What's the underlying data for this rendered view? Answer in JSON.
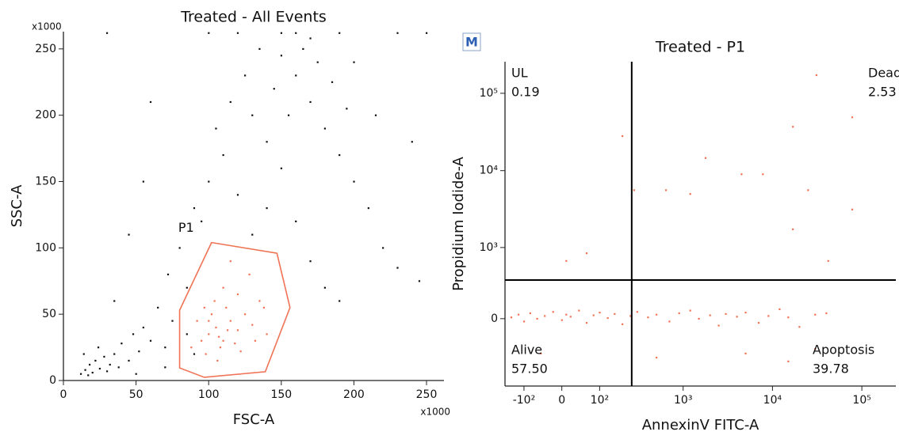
{
  "chart_data": [
    {
      "type": "scatter",
      "title": "Treated - All Events",
      "x_label": "FSC-A",
      "y_label": "SSC-A",
      "x_unit_label": "x1000",
      "y_unit_label": "x1000",
      "xlim": [
        0,
        262
      ],
      "ylim": [
        0,
        263
      ],
      "xticks": [
        0,
        50,
        100,
        150,
        200,
        250
      ],
      "yticks": [
        0,
        50,
        100,
        150,
        200,
        250
      ],
      "series": [
        {
          "color": "#111111",
          "x": [
            12,
            15,
            18,
            20,
            22,
            25,
            28,
            30,
            14,
            17,
            24,
            32,
            35,
            38,
            40,
            45,
            48,
            52,
            55,
            60,
            65,
            70,
            72,
            75,
            80,
            85,
            90,
            95,
            100,
            105,
            110,
            115,
            120,
            125,
            130,
            135,
            140,
            145,
            150,
            155,
            160,
            165,
            170,
            175,
            180,
            185,
            190,
            195,
            200,
            210,
            220,
            230,
            245,
            160,
            170,
            180,
            190,
            150,
            140,
            130,
            60,
            45,
            35,
            55,
            200,
            215,
            240,
            170,
            160,
            150,
            100,
            30,
            230,
            250,
            120,
            190,
            85,
            90,
            70,
            50
          ],
          "values": [
            5,
            8,
            12,
            6,
            15,
            9,
            18,
            7,
            20,
            4,
            25,
            12,
            20,
            10,
            28,
            15,
            35,
            22,
            40,
            30,
            55,
            25,
            80,
            45,
            100,
            70,
            130,
            120,
            150,
            190,
            170,
            210,
            140,
            230,
            200,
            250,
            180,
            220,
            245,
            200,
            230,
            250,
            210,
            240,
            190,
            225,
            170,
            205,
            150,
            130,
            100,
            85,
            75,
            120,
            90,
            70,
            60,
            160,
            130,
            110,
            210,
            110,
            60,
            150,
            240,
            200,
            180,
            258,
            262,
            262,
            262,
            262,
            262,
            262,
            262,
            262,
            35,
            20,
            10,
            5
          ]
        },
        {
          "color": "#f07356",
          "x": [
            95,
            100,
            105,
            110,
            115,
            120,
            108,
            102,
            98,
            112,
            118,
            125,
            130,
            135,
            92,
            88,
            104,
            110,
            120,
            128,
            115,
            106,
            140,
            138,
            97,
            122,
            132,
            100,
            107,
            113
          ],
          "values": [
            30,
            35,
            40,
            30,
            45,
            38,
            25,
            50,
            20,
            55,
            28,
            50,
            42,
            60,
            45,
            25,
            60,
            70,
            65,
            80,
            90,
            15,
            35,
            55,
            55,
            22,
            30,
            45,
            33,
            38
          ]
        }
      ],
      "gates": [
        {
          "label": "P1",
          "color": "#f07356",
          "x": [
            102,
            147,
            156,
            139,
            97,
            80,
            80
          ],
          "y": [
            104,
            96,
            55,
            6.6,
            2.4,
            9.5,
            53
          ]
        }
      ]
    },
    {
      "type": "scatter",
      "title": "Treated - P1",
      "badge": "M",
      "x_label": "AnnexinV FITC-A",
      "y_label": "Propidium Iodide-A",
      "xscale": "biexponential",
      "yscale": "biexponential",
      "xlim": [
        -180,
        240000
      ],
      "ylim": [
        -890,
        256000
      ],
      "xticks": [
        {
          "value": -100,
          "label": "-10²"
        },
        0,
        {
          "value": 100,
          "label": "10²"
        },
        {
          "value": 1000,
          "label": "10³"
        },
        {
          "value": 10000,
          "label": "10⁴"
        },
        {
          "value": 100000,
          "label": "10⁵"
        }
      ],
      "yticks": [
        0,
        {
          "value": 1000,
          "label": "10³"
        },
        {
          "value": 10000,
          "label": "10⁴"
        },
        {
          "value": 100000,
          "label": "10⁵"
        }
      ],
      "series": [
        {
          "color": "#f07356",
          "x": [
            -150,
            -120,
            -100,
            -80,
            -60,
            -40,
            -20,
            0,
            10,
            20,
            40,
            60,
            80,
            100,
            130,
            160,
            200,
            250,
            300,
            400,
            500,
            700,
            900,
            1200,
            1500,
            2000,
            2500,
            3000,
            4000,
            5000,
            7000,
            9000,
            12000,
            15000,
            20000,
            30000,
            40000,
            -50,
            500,
            5000,
            15000,
            30000,
            10,
            60,
            200,
            276,
            640,
            1200,
            1780,
            4500,
            7800,
            16900,
            31000,
            78000,
            78000,
            42000,
            16900,
            25000
          ],
          "values": [
            10,
            30,
            -20,
            40,
            0,
            20,
            50,
            -10,
            30,
            15,
            60,
            -30,
            25,
            45,
            5,
            35,
            -40,
            20,
            50,
            10,
            30,
            -20,
            40,
            60,
            0,
            25,
            -50,
            35,
            15,
            45,
            -30,
            20,
            70,
            10,
            -60,
            30,
            40,
            -300,
            -350,
            -300,
            -400,
            -250,
            660,
            840,
            28000,
            5600,
            5600,
            5000,
            14600,
            9000,
            9000,
            37000,
            172000,
            49000,
            3150,
            660,
            1740,
            5600
          ]
        }
      ],
      "quadrant": {
        "x": 259,
        "y": 347
      },
      "quadrant_stats": {
        "names": [
          "UL",
          "Dead",
          "Alive",
          "Apoptosis"
        ],
        "values": [
          0.19,
          2.53,
          57.5,
          39.78
        ],
        "value_labels": [
          "0.19",
          "2.53",
          "57.50",
          "39.78"
        ]
      }
    }
  ]
}
